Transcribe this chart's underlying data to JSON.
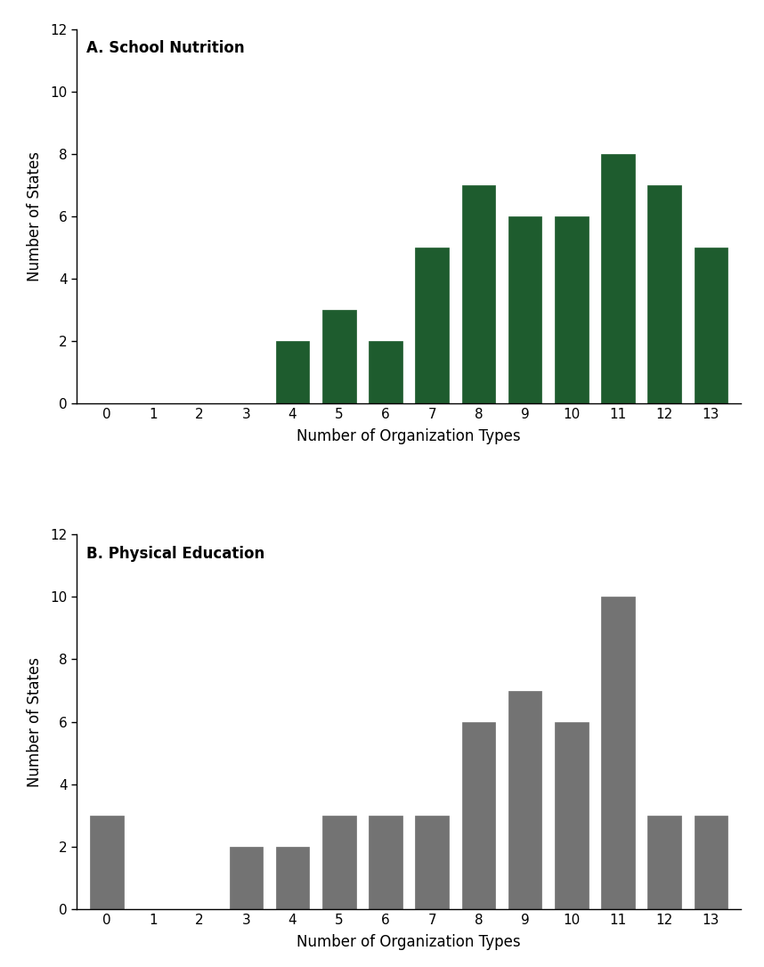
{
  "panel_A": {
    "title": "A. School Nutrition",
    "x_labels": [
      0,
      1,
      2,
      3,
      4,
      5,
      6,
      7,
      8,
      9,
      10,
      11,
      12,
      13
    ],
    "values": [
      0,
      0,
      0,
      0,
      2,
      3,
      2,
      5,
      7,
      6,
      6,
      8,
      7,
      5
    ],
    "bar_color": "#1e5c2e",
    "bar_edge_color": "#1e5c2e",
    "bar_edge_width": 0.5,
    "xlabel": "Number of Organization Types",
    "ylabel": "Number of States",
    "ylim": [
      0,
      12
    ],
    "yticks": [
      0,
      2,
      4,
      6,
      8,
      10,
      12
    ]
  },
  "panel_B": {
    "title": "B. Physical Education",
    "x_labels": [
      0,
      1,
      2,
      3,
      4,
      5,
      6,
      7,
      8,
      9,
      10,
      11,
      12,
      13
    ],
    "values": [
      3,
      0,
      0,
      2,
      2,
      3,
      3,
      3,
      6,
      7,
      6,
      10,
      3,
      3
    ],
    "bar_color": "#737373",
    "bar_edge_color": "#737373",
    "bar_edge_width": 0.5,
    "xlabel": "Number of Organization Types",
    "ylabel": "Number of States",
    "ylim": [
      0,
      12
    ],
    "yticks": [
      0,
      2,
      4,
      6,
      8,
      10,
      12
    ]
  },
  "figure_width": 8.58,
  "figure_height": 10.86,
  "dpi": 100,
  "background_color": "#ffffff",
  "tick_fontsize": 11,
  "label_fontsize": 12,
  "title_fontsize": 12
}
